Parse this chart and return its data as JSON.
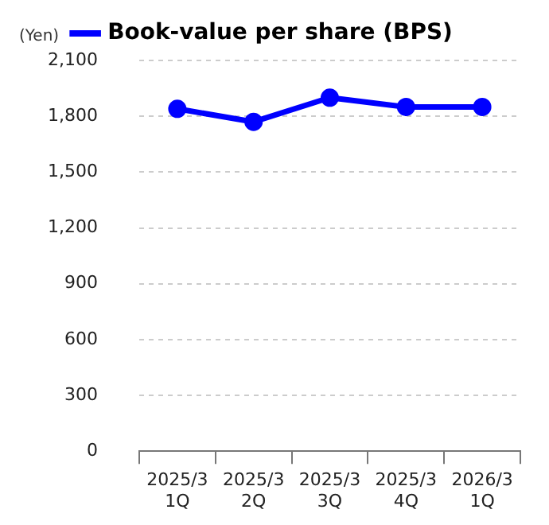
{
  "chart_data": {
    "type": "line",
    "ylabel": "(Yen)",
    "categories": [
      "2025/3\n1Q",
      "2025/3\n2Q",
      "2025/3\n3Q",
      "2025/3\n4Q",
      "2026/3\n1Q"
    ],
    "series": [
      {
        "name": "Book-value per share (BPS)",
        "color": "#0000ff",
        "values": [
          1840,
          1770,
          1900,
          1850,
          1850
        ]
      }
    ],
    "ylim": [
      0,
      2100
    ],
    "yticks": [
      {
        "value": 0,
        "label": "0"
      },
      {
        "value": 300,
        "label": "300"
      },
      {
        "value": 600,
        "label": "600"
      },
      {
        "value": 900,
        "label": "900"
      },
      {
        "value": 1200,
        "label": "1,200"
      },
      {
        "value": 1500,
        "label": "1,500"
      },
      {
        "value": 1800,
        "label": "1,800"
      },
      {
        "value": 2100,
        "label": "2,100"
      }
    ],
    "grid": "y",
    "legend": "top",
    "marker": "circle",
    "line_style": "solid"
  }
}
